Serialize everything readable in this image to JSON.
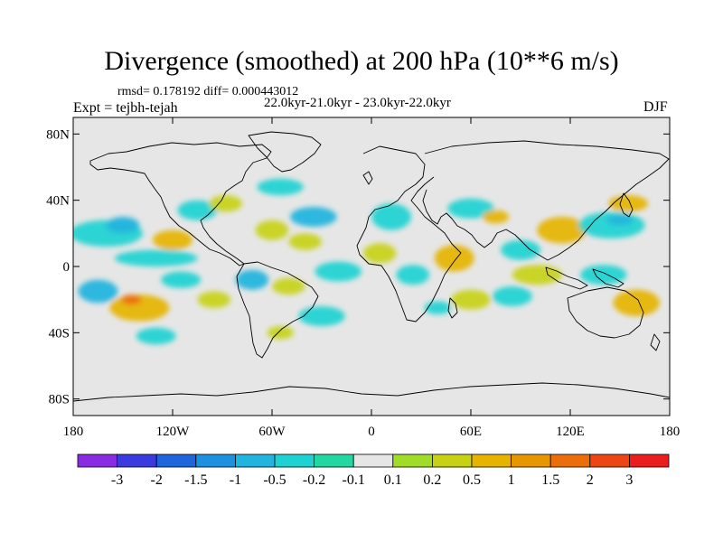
{
  "title": "Divergence (smoothed) at 200 hPa (10**6 m/s)",
  "stats_text": "rmsd= 0.178192 diff= 0.000443012",
  "experiment_label": "Expt = tejbh-tejah",
  "period_label": "22.0kyr-21.0kyr - 23.0kyr-22.0kyr",
  "season": "DJF",
  "map": {
    "projection": "cylindrical equidistant",
    "lon_range": [
      -180,
      180
    ],
    "lat_range": [
      -90,
      90
    ],
    "background_color": "#e6e6e6"
  },
  "axes": {
    "lat_ticks": [
      {
        "value": 80,
        "label": "80N"
      },
      {
        "value": 40,
        "label": "40N"
      },
      {
        "value": 0,
        "label": "0"
      },
      {
        "value": -40,
        "label": "40S"
      },
      {
        "value": -80,
        "label": "80S"
      }
    ],
    "lon_ticks": [
      {
        "value": -180,
        "label": "180"
      },
      {
        "value": -120,
        "label": "120W"
      },
      {
        "value": -60,
        "label": "60W"
      },
      {
        "value": 0,
        "label": "0"
      },
      {
        "value": 60,
        "label": "60E"
      },
      {
        "value": 120,
        "label": "120E"
      },
      {
        "value": 180,
        "label": "180"
      }
    ]
  },
  "colorbar": {
    "colors": [
      "#8a2be2",
      "#3a3ade",
      "#1f66dd",
      "#1e90e0",
      "#20b4de",
      "#1fd2d2",
      "#22d8a0",
      "#e6e6e6",
      "#a0dc28",
      "#c8d214",
      "#e6b400",
      "#e69600",
      "#eb6e0a",
      "#eb4614",
      "#eb1e1e"
    ],
    "labels": [
      "-3",
      "-2",
      "-1.5",
      "-1",
      "-0.5",
      "-0.2",
      "-0.1",
      "0.1",
      "0.2",
      "0.5",
      "1",
      "1.5",
      "2",
      "3"
    ]
  },
  "chart_data": {
    "type": "heatmap",
    "title": "Divergence (smoothed) at 200 hPa (10**6 m/s)",
    "units": "10**6 m/s",
    "levels": [
      -3,
      -2,
      -1.5,
      -1,
      -0.5,
      -0.2,
      -0.1,
      0.1,
      0.2,
      0.5,
      1,
      1.5,
      2,
      3
    ],
    "features": [
      {
        "lon": -160,
        "lat": 20,
        "rx": 22,
        "ry": 8,
        "value": -0.4
      },
      {
        "lon": -150,
        "lat": 25,
        "rx": 10,
        "ry": 5,
        "value": -1.0
      },
      {
        "lon": -120,
        "lat": 16,
        "rx": 12,
        "ry": 6,
        "value": 0.6
      },
      {
        "lon": -130,
        "lat": 5,
        "rx": 25,
        "ry": 5,
        "value": -0.3
      },
      {
        "lon": -105,
        "lat": 34,
        "rx": 12,
        "ry": 6,
        "value": -0.4
      },
      {
        "lon": -88,
        "lat": 38,
        "rx": 10,
        "ry": 5,
        "value": 0.3
      },
      {
        "lon": -60,
        "lat": 22,
        "rx": 10,
        "ry": 6,
        "value": 0.4
      },
      {
        "lon": -55,
        "lat": 48,
        "rx": 14,
        "ry": 5,
        "value": -0.3
      },
      {
        "lon": -35,
        "lat": 30,
        "rx": 14,
        "ry": 6,
        "value": -0.6
      },
      {
        "lon": -40,
        "lat": 15,
        "rx": 10,
        "ry": 5,
        "value": 0.3
      },
      {
        "lon": -165,
        "lat": -15,
        "rx": 12,
        "ry": 7,
        "value": -0.6
      },
      {
        "lon": -140,
        "lat": -25,
        "rx": 18,
        "ry": 8,
        "value": 0.9
      },
      {
        "lon": -145,
        "lat": -20,
        "rx": 6,
        "ry": 3,
        "value": 1.6
      },
      {
        "lon": -115,
        "lat": -8,
        "rx": 12,
        "ry": 5,
        "value": -0.5
      },
      {
        "lon": -95,
        "lat": -20,
        "rx": 10,
        "ry": 5,
        "value": 0.4
      },
      {
        "lon": -72,
        "lat": -8,
        "rx": 10,
        "ry": 6,
        "value": -0.8
      },
      {
        "lon": -50,
        "lat": -12,
        "rx": 10,
        "ry": 5,
        "value": 0.3
      },
      {
        "lon": -20,
        "lat": -3,
        "rx": 14,
        "ry": 6,
        "value": -0.4
      },
      {
        "lon": -30,
        "lat": -30,
        "rx": 14,
        "ry": 6,
        "value": -0.3
      },
      {
        "lon": -55,
        "lat": -40,
        "rx": 8,
        "ry": 4,
        "value": 0.2
      },
      {
        "lon": -130,
        "lat": -42,
        "rx": 12,
        "ry": 5,
        "value": -0.3
      },
      {
        "lon": 12,
        "lat": 30,
        "rx": 12,
        "ry": 8,
        "value": -0.4
      },
      {
        "lon": 5,
        "lat": 8,
        "rx": 10,
        "ry": 6,
        "value": 0.3
      },
      {
        "lon": 25,
        "lat": -5,
        "rx": 10,
        "ry": 6,
        "value": -0.3
      },
      {
        "lon": 50,
        "lat": 5,
        "rx": 12,
        "ry": 8,
        "value": 0.6
      },
      {
        "lon": 60,
        "lat": 35,
        "rx": 14,
        "ry": 6,
        "value": -0.4
      },
      {
        "lon": 75,
        "lat": 30,
        "rx": 8,
        "ry": 4,
        "value": 0.7
      },
      {
        "lon": 90,
        "lat": 10,
        "rx": 12,
        "ry": 6,
        "value": -0.3
      },
      {
        "lon": 115,
        "lat": 22,
        "rx": 15,
        "ry": 8,
        "value": 0.6
      },
      {
        "lon": 145,
        "lat": 25,
        "rx": 20,
        "ry": 8,
        "value": -0.5
      },
      {
        "lon": 150,
        "lat": 28,
        "rx": 8,
        "ry": 3,
        "value": -1.0
      },
      {
        "lon": 155,
        "lat": 38,
        "rx": 12,
        "ry": 5,
        "value": 0.5
      },
      {
        "lon": 100,
        "lat": -5,
        "rx": 15,
        "ry": 6,
        "value": 0.4
      },
      {
        "lon": 140,
        "lat": -5,
        "rx": 14,
        "ry": 6,
        "value": -0.5
      },
      {
        "lon": 160,
        "lat": -22,
        "rx": 14,
        "ry": 8,
        "value": 0.5
      },
      {
        "lon": 85,
        "lat": -18,
        "rx": 12,
        "ry": 6,
        "value": -0.3
      },
      {
        "lon": 60,
        "lat": -20,
        "rx": 12,
        "ry": 6,
        "value": 0.3
      },
      {
        "lon": 40,
        "lat": -25,
        "rx": 8,
        "ry": 4,
        "value": -0.3
      }
    ]
  }
}
